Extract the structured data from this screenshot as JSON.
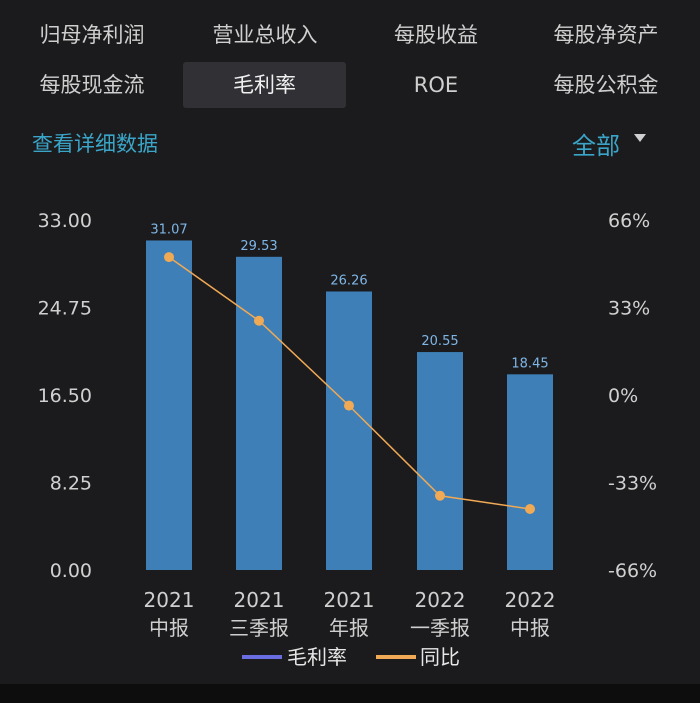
{
  "tabs": [
    {
      "label": "归母净利润"
    },
    {
      "label": "营业总收入"
    },
    {
      "label": "每股收益"
    },
    {
      "label": "每股净资产"
    },
    {
      "label": "每股现金流"
    },
    {
      "label": "毛利率"
    },
    {
      "label": "ROE"
    },
    {
      "label": "每股公积金"
    }
  ],
  "active_tab": "毛利率",
  "detail_link": "查看详细数据",
  "filter": {
    "label": "全部",
    "icon": "caret-down-icon"
  },
  "colors": {
    "bar": "#3d7fb6",
    "line": "#f0a955",
    "accent": "#3aa5c8",
    "legend_bar": "#6a6de0"
  },
  "chart_data": {
    "type": "bar",
    "categories": [
      {
        "year": "2021",
        "period": "中报"
      },
      {
        "year": "2021",
        "period": "三季报"
      },
      {
        "year": "2021",
        "period": "年报"
      },
      {
        "year": "2022",
        "period": "一季报"
      },
      {
        "year": "2022",
        "period": "中报"
      }
    ],
    "series": [
      {
        "name": "毛利率",
        "type": "bar",
        "axis": "left",
        "values": [
          31.07,
          29.53,
          26.26,
          20.55,
          18.45
        ],
        "labels": [
          "31.07",
          "29.53",
          "26.26",
          "20.55",
          "18.45"
        ]
      },
      {
        "name": "同比",
        "type": "line",
        "axis": "right",
        "values": [
          52,
          28,
          -4,
          -38,
          -43
        ]
      }
    ],
    "y_left": {
      "min": 0,
      "max": 33,
      "ticks": [
        "0.00",
        "8.25",
        "16.50",
        "24.75",
        "33.00"
      ]
    },
    "y_right": {
      "min": -66,
      "max": 66,
      "ticks": [
        "-66%",
        "-33%",
        "0%",
        "33%",
        "66%"
      ]
    },
    "legend": {
      "placement": "bottom"
    }
  }
}
